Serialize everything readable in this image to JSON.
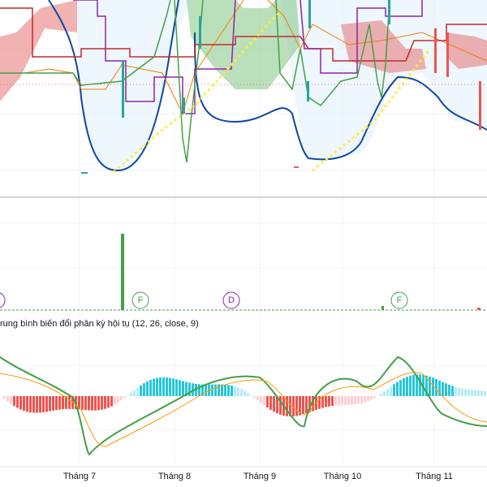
{
  "x_axis": {
    "labels": [
      "Tháng 7",
      "Tháng 8",
      "Tháng 9",
      "Tháng 10",
      "Tháng 11"
    ]
  },
  "indicator": {
    "label": "rung bình biến đổi phân kỳ hội tụ (12, 26, close, 9)"
  },
  "markers": [
    "F",
    "D",
    "F"
  ]
}
